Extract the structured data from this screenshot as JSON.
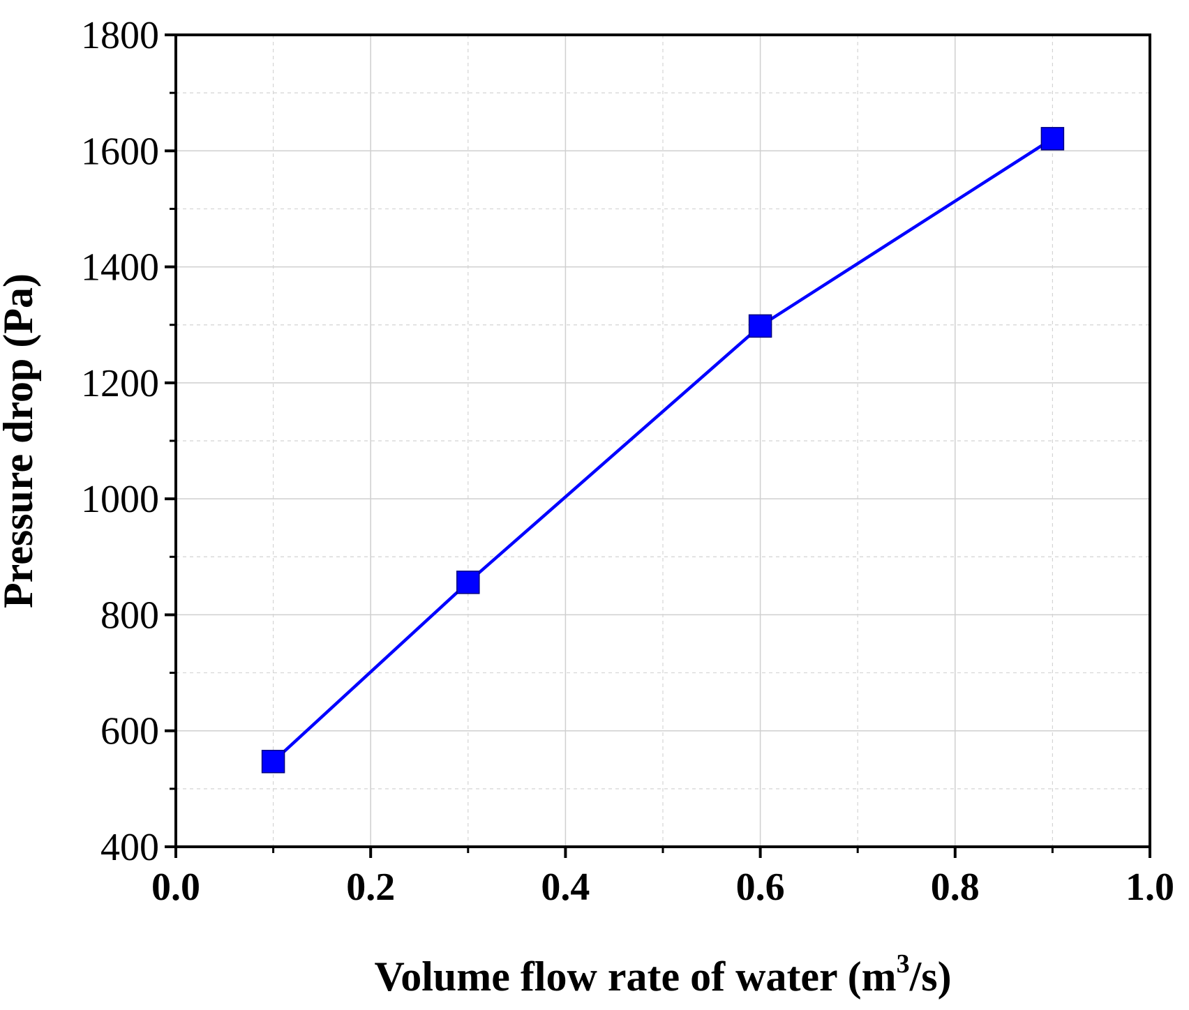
{
  "chart_data": {
    "type": "line",
    "title": "",
    "xlabel": "Volume flow rate of water (m",
    "xlabel_superscript": "3",
    "xlabel_suffix": "/s)",
    "ylabel": "Pressure drop (Pa)",
    "xlim": [
      0.0,
      1.0
    ],
    "ylim": [
      400,
      1800
    ],
    "x_ticks": [
      "0.0",
      "0.2",
      "0.4",
      "0.6",
      "0.8",
      "1.0"
    ],
    "y_ticks": [
      "400",
      "600",
      "800",
      "1000",
      "1200",
      "1400",
      "1600",
      "1800"
    ],
    "grid": true,
    "series": [
      {
        "name": "Pressure drop",
        "color": "#0000ff",
        "marker": "square",
        "x": [
          0.1,
          0.3,
          0.6,
          0.9
        ],
        "y": [
          547,
          856,
          1298,
          1621
        ]
      }
    ]
  }
}
